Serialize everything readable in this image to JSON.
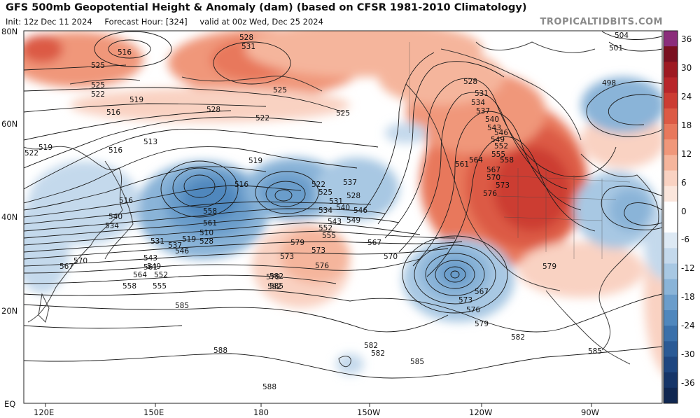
{
  "header": {
    "title": "GFS 500mb Geopotential Height & Anomaly (dam) (based on CFSR 1981-2010 Climatology)",
    "init": "Init: 12z Dec 11 2024",
    "forecast_hour": "Forecast Hour: [324]",
    "valid": "valid at 00z Wed, Dec 25 2024",
    "brand": "TROPICALTIDBITS.COM"
  },
  "axes": {
    "lat_labels": [
      "80N",
      "60N",
      "40N",
      "20N",
      "EQ"
    ],
    "lon_labels": [
      "120E",
      "150E",
      "180",
      "150W",
      "120W",
      "90W"
    ]
  },
  "colorbar": {
    "labels": [
      "36",
      "30",
      "24",
      "18",
      "12",
      "6",
      "0",
      "-6",
      "-12",
      "-18",
      "-24",
      "-30",
      "-36"
    ],
    "colors": [
      "#8b2d7b",
      "#7a1020",
      "#9e1a22",
      "#b8262a",
      "#cc3c33",
      "#dc5a45",
      "#e8785c",
      "#f0977a",
      "#f5b59c",
      "#f9d2c2",
      "#fbe6dc",
      "#ffffff",
      "#ffffff",
      "#dde9f4",
      "#c4d9ec",
      "#a8c8e3",
      "#8ab4d8",
      "#6b9dcb",
      "#4f87bd",
      "#3a70aa",
      "#2a5a95",
      "#1e4680",
      "#163568",
      "#102751"
    ]
  },
  "contour_labels": [
    "528",
    "531",
    "516",
    "525",
    "525",
    "522",
    "519",
    "516",
    "528",
    "525",
    "522",
    "525",
    "513",
    "516",
    "519",
    "522",
    "519",
    "516",
    "516",
    "522",
    "525",
    "531",
    "537",
    "528",
    "534",
    "540",
    "546",
    "543",
    "549",
    "552",
    "555",
    "558",
    "561",
    "510",
    "519",
    "528",
    "534",
    "540",
    "531",
    "537",
    "546",
    "543",
    "549",
    "552",
    "555",
    "558",
    "561",
    "564",
    "567",
    "570",
    "573",
    "576",
    "579",
    "582",
    "585",
    "588",
    "573",
    "579",
    "582",
    "585",
    "567",
    "570",
    "567",
    "573",
    "576",
    "579",
    "588",
    "582",
    "582",
    "585",
    "528",
    "531",
    "534",
    "537",
    "540",
    "543",
    "546",
    "549",
    "552",
    "555",
    "558",
    "561",
    "564",
    "567",
    "570",
    "573",
    "576",
    "579",
    "582",
    "585",
    "504",
    "501",
    "498"
  ]
}
